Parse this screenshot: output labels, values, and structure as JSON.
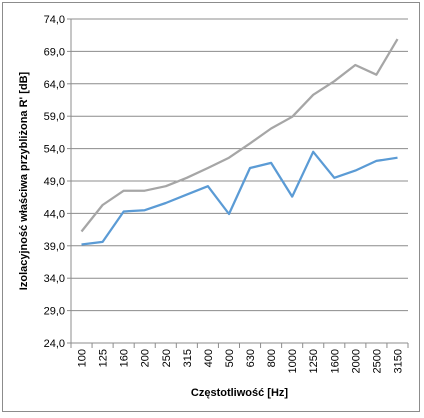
{
  "chart_data": {
    "type": "line",
    "title": "",
    "xlabel": "Częstotliwość [Hz]",
    "ylabel": "Izolacyjność właściwa przybliżona R' [dB]",
    "categories": [
      "100",
      "125",
      "160",
      "200",
      "250",
      "315",
      "400",
      "500",
      "630",
      "800",
      "1000",
      "1250",
      "1600",
      "2000",
      "2500",
      "3150"
    ],
    "y_ticks": [
      "24,0",
      "29,0",
      "34,0",
      "39,0",
      "44,0",
      "49,0",
      "54,0",
      "59,0",
      "64,0",
      "69,0",
      "74,0"
    ],
    "ylim": [
      24,
      74
    ],
    "y_tick_step": 5,
    "grid": "horizontal",
    "legend": "none",
    "series": [
      {
        "color": "#a6a6a6",
        "values": [
          41.2,
          45.3,
          47.5,
          47.5,
          48.2,
          49.5,
          51.0,
          52.6,
          54.8,
          57.1,
          58.9,
          62.3,
          64.4,
          66.9,
          65.4,
          70.9
        ]
      },
      {
        "color": "#5b9bd5",
        "values": [
          39.2,
          39.6,
          44.3,
          44.5,
          45.6,
          46.9,
          48.2,
          43.9,
          51.0,
          51.8,
          46.6,
          53.5,
          49.5,
          50.6,
          52.1,
          52.6
        ]
      }
    ]
  }
}
